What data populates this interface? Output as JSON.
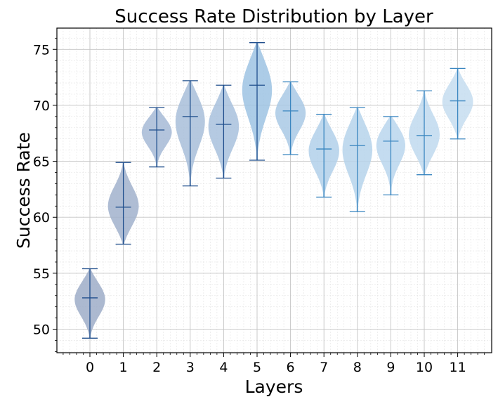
{
  "chart_data": {
    "type": "violin",
    "title": "Success Rate Distribution by Layer",
    "xlabel": "Layers",
    "ylabel": "Success Rate",
    "categories": [
      "0",
      "1",
      "2",
      "3",
      "4",
      "5",
      "6",
      "7",
      "8",
      "9",
      "10",
      "11"
    ],
    "ylim": [
      47.9,
      76.9
    ],
    "yticks": [
      50,
      55,
      60,
      65,
      70,
      75
    ],
    "grid": true,
    "violins": [
      {
        "min": 49.2,
        "max": 55.4,
        "median": 52.8,
        "color": "#9eadc8"
      },
      {
        "min": 57.6,
        "max": 64.9,
        "median": 60.9,
        "color": "#a1b2cd"
      },
      {
        "min": 64.5,
        "max": 69.8,
        "median": 67.8,
        "color": "#a6bad6"
      },
      {
        "min": 62.8,
        "max": 72.2,
        "median": 69.0,
        "color": "#a8bed9"
      },
      {
        "min": 63.5,
        "max": 71.8,
        "median": 68.3,
        "color": "#a8c1dd"
      },
      {
        "min": 65.1,
        "max": 75.6,
        "median": 71.8,
        "color": "#9ec3e3"
      },
      {
        "min": 65.6,
        "max": 72.1,
        "median": 69.5,
        "color": "#a9c9e5"
      },
      {
        "min": 61.8,
        "max": 69.2,
        "median": 66.1,
        "color": "#b2d0ea"
      },
      {
        "min": 60.5,
        "max": 69.8,
        "median": 66.4,
        "color": "#b6d3eb"
      },
      {
        "min": 62.0,
        "max": 69.0,
        "median": 66.8,
        "color": "#bad6ed"
      },
      {
        "min": 63.8,
        "max": 71.3,
        "median": 67.3,
        "color": "#bfd9ef"
      },
      {
        "min": 67.0,
        "max": 73.3,
        "median": 70.4,
        "color": "#c5ddf0"
      }
    ]
  }
}
